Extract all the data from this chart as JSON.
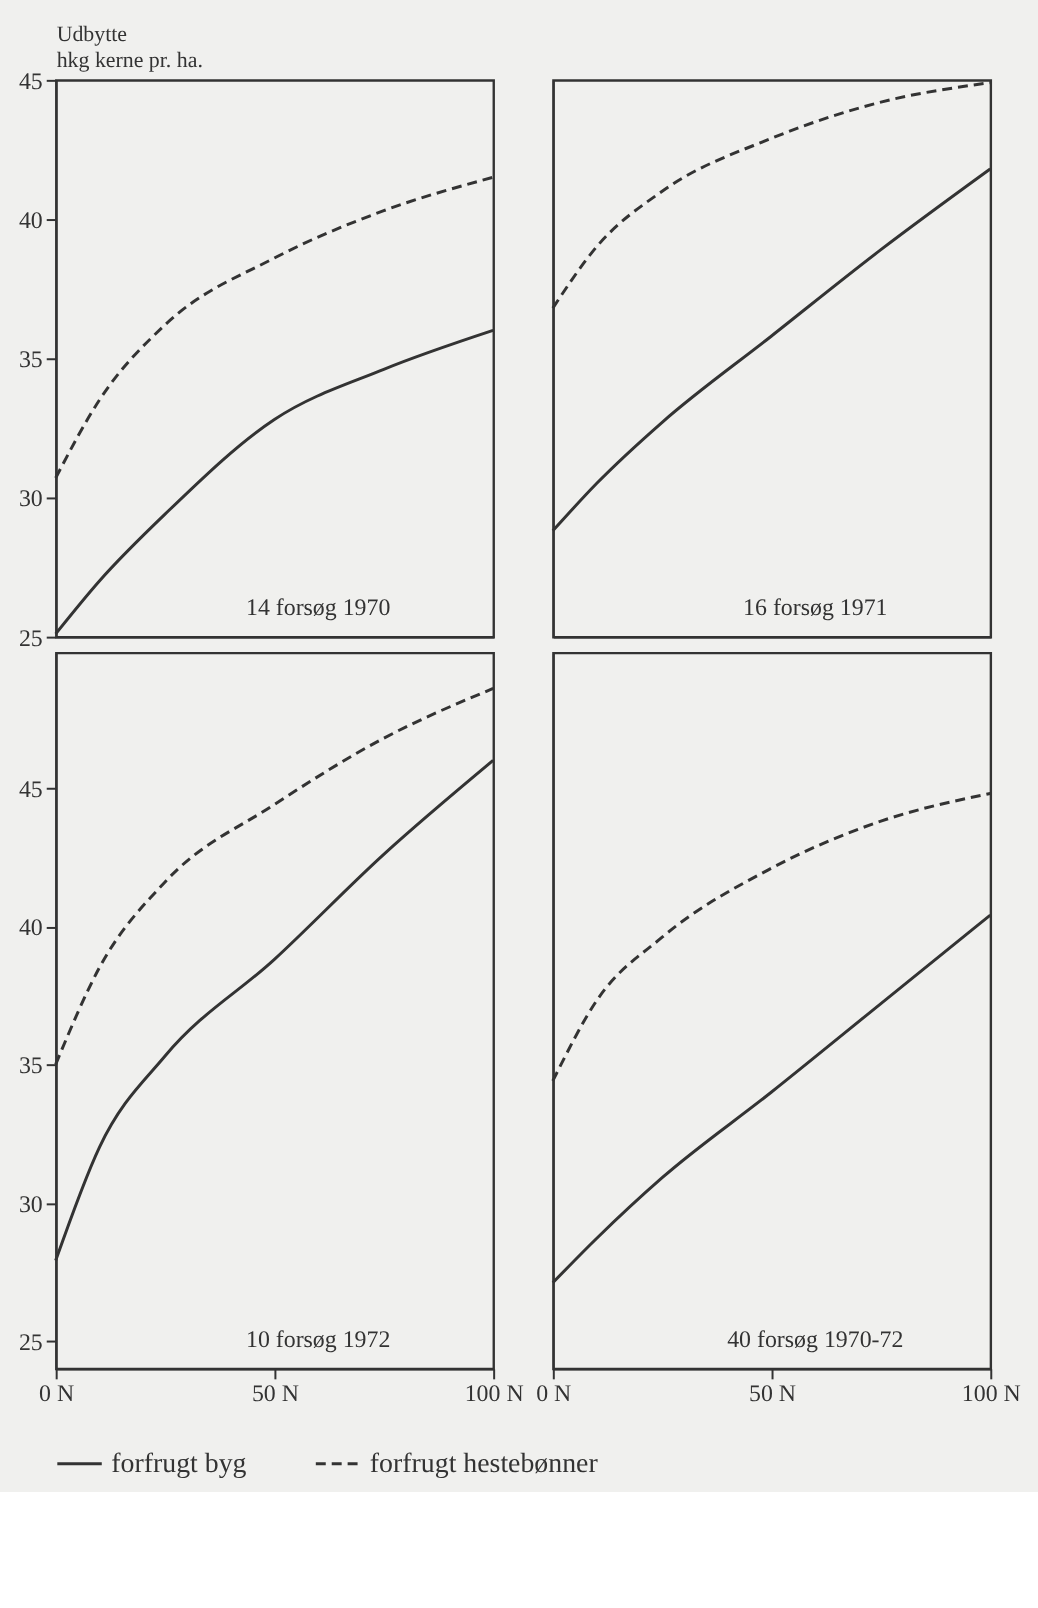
{
  "chart_data": [
    {
      "type": "line",
      "ylabel": "Udbytte\nhkg kerne pr. ha.",
      "annotations": [
        "14 forsøg 1970"
      ],
      "xlim": [
        0,
        100
      ],
      "ylim": [
        25,
        45
      ],
      "yticks": [
        25,
        30,
        35,
        40,
        45
      ],
      "tick_labels": "y",
      "x": [
        0,
        10,
        25,
        50,
        75,
        100
      ],
      "series": [
        {
          "color": "#333333",
          "line_style": "solid",
          "values": [
            25.1,
            27.0,
            29.4,
            32.8,
            34.6,
            36.0
          ]
        },
        {
          "color": "#333333",
          "line_style": "dashed",
          "values": [
            30.7,
            33.5,
            36.2,
            38.6,
            40.3,
            41.5
          ]
        }
      ]
    },
    {
      "type": "line",
      "annotations": [
        "16 forsøg 1971"
      ],
      "xlim": [
        0,
        100
      ],
      "ylim": [
        25,
        45
      ],
      "tick_labels": false,
      "x": [
        0,
        10,
        25,
        50,
        75,
        100
      ],
      "series": [
        {
          "color": "#333333",
          "line_style": "solid",
          "values": [
            28.8,
            30.5,
            32.7,
            35.8,
            38.9,
            41.8
          ]
        },
        {
          "color": "#333333",
          "line_style": "dashed",
          "values": [
            36.8,
            39.0,
            41.0,
            42.9,
            44.2,
            44.9
          ]
        }
      ]
    },
    {
      "type": "line",
      "annotations": [
        "10 forsøg 1972"
      ],
      "xlim": [
        0,
        100
      ],
      "ylim": [
        24,
        49.9
      ],
      "xticks": [
        {
          "value": 0,
          "label": "0 N"
        },
        {
          "value": 50,
          "label": "50 N"
        },
        {
          "value": 100,
          "label": "100 N"
        }
      ],
      "yticks": [
        25,
        30,
        35,
        40,
        45
      ],
      "legend": "bottom",
      "x": [
        0,
        10,
        25,
        50,
        75,
        100
      ],
      "series": [
        {
          "name": "forfrugt byg",
          "color": "#333333",
          "line_style": "solid",
          "values": [
            27.9,
            32.0,
            35.3,
            38.8,
            42.6,
            46.0
          ]
        },
        {
          "name": "forfrugt hestebønner",
          "color": "#333333",
          "line_style": "dashed",
          "values": [
            35.0,
            38.5,
            41.6,
            44.4,
            46.8,
            48.6
          ]
        }
      ]
    },
    {
      "type": "line",
      "annotations": [
        "40 forsøg 1970-72"
      ],
      "xlim": [
        0,
        100
      ],
      "ylim": [
        24,
        49.9
      ],
      "xticks": [
        {
          "value": 0,
          "label": "0 N"
        },
        {
          "value": 50,
          "label": "50 N"
        },
        {
          "value": 100,
          "label": "100 N"
        }
      ],
      "tick_labels": "x",
      "x": [
        0,
        10,
        25,
        50,
        75,
        100
      ],
      "series": [
        {
          "color": "#333333",
          "line_style": "solid",
          "values": [
            27.1,
            28.7,
            30.9,
            34.0,
            37.2,
            40.4
          ]
        },
        {
          "color": "#333333",
          "line_style": "dashed",
          "values": [
            34.4,
            37.3,
            39.6,
            42.1,
            43.8,
            44.8
          ]
        }
      ]
    }
  ]
}
